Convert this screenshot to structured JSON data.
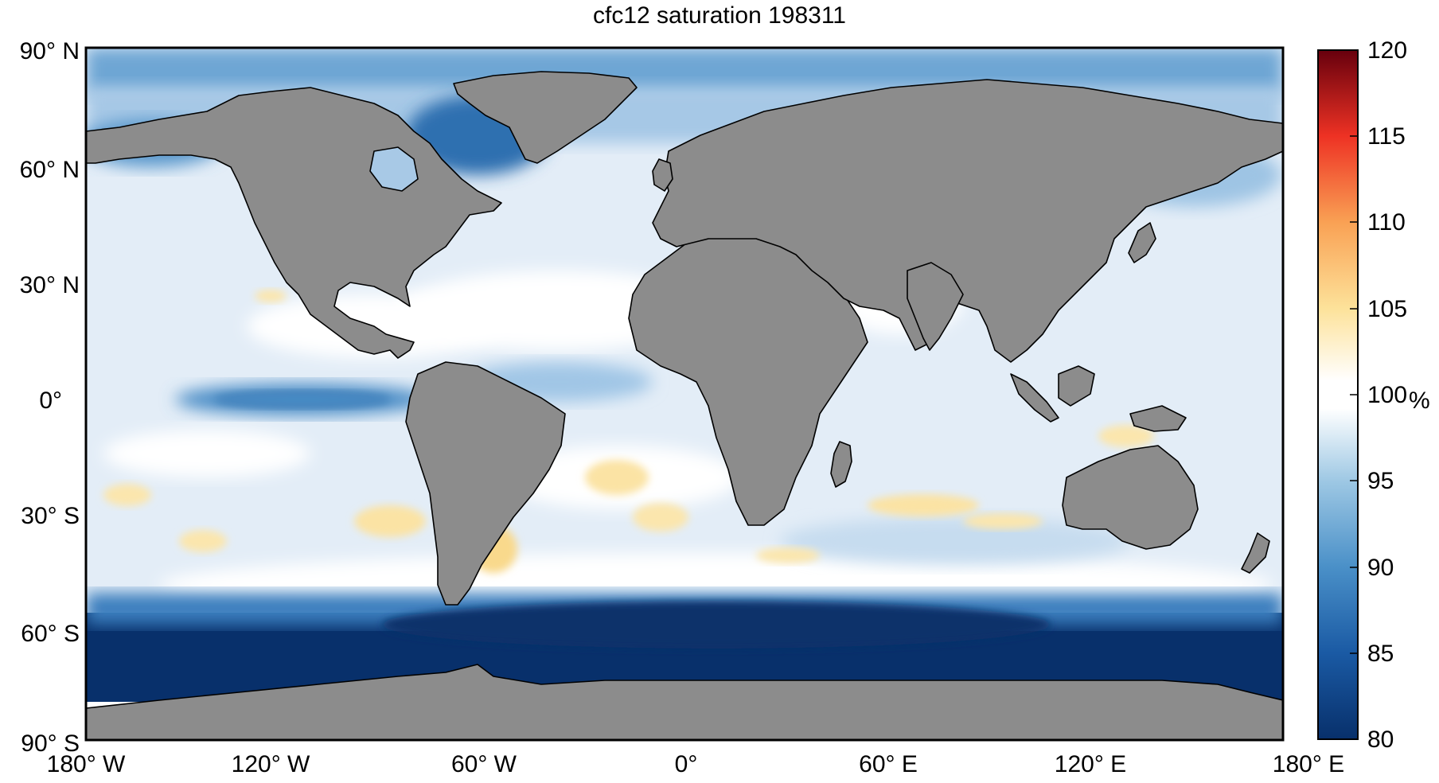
{
  "title": "cfc12 saturation 198311",
  "latitude_labels": [
    "90° N",
    "60° N",
    "30° N",
    "0°",
    "30° S",
    "60° S",
    "90° S"
  ],
  "longitude_labels": [
    "180° W",
    "120° W",
    "60° W",
    "0°",
    "60° E",
    "120° E",
    "180° E"
  ],
  "colorbar": {
    "min": 80,
    "max": 120,
    "tick_labels": [
      "120",
      "115",
      "110",
      "105",
      "100",
      "95",
      "90",
      "85",
      "80"
    ],
    "unit": "%",
    "colors": {
      "low": "#08306b",
      "mid_low": "#4a90c8",
      "neutral": "#ffffff",
      "mid_high": "#f4a582",
      "high": "#67000d"
    }
  },
  "map": {
    "land_color": "#8c8c8c",
    "ocean_base_color": "#e4eef7"
  }
}
